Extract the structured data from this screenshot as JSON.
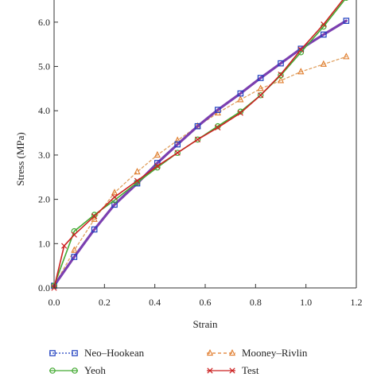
{
  "chart_data": {
    "type": "line",
    "xlabel": "Strain",
    "ylabel": "Stress (MPa)",
    "xlim": [
      0.0,
      1.2
    ],
    "ylim": [
      0.0,
      6.5
    ],
    "xticks": [
      "0.0",
      "0.2",
      "0.4",
      "0.6",
      "0.8",
      "1.0",
      "1.2"
    ],
    "xtick_values": [
      0.0,
      0.2,
      0.4,
      0.6,
      0.8,
      1.0,
      1.2
    ],
    "yticks": [
      "0.0",
      "1.0",
      "2.0",
      "3.0",
      "4.0",
      "5.0",
      "6.0"
    ],
    "ytick_values": [
      0.0,
      1.0,
      2.0,
      3.0,
      4.0,
      5.0,
      6.0
    ],
    "grid": false,
    "legend_position": "bottom",
    "series": [
      {
        "name": "Neo–Hookean",
        "color": "#1f3fbf",
        "line_color": "#7b3fb0",
        "marker": "square",
        "x": [
          0.0,
          0.08,
          0.16,
          0.24,
          0.33,
          0.41,
          0.49,
          0.57,
          0.65,
          0.74,
          0.82,
          0.9,
          0.98,
          1.07,
          1.16
        ],
        "y": [
          0.05,
          0.7,
          1.32,
          1.88,
          2.36,
          2.82,
          3.24,
          3.65,
          4.02,
          4.39,
          4.74,
          5.07,
          5.4,
          5.72,
          6.03
        ]
      },
      {
        "name": "Mooney–Rivlin",
        "color": "#e07b2a",
        "line_color": "#e0a060",
        "marker": "triangle",
        "x": [
          0.0,
          0.08,
          0.16,
          0.24,
          0.33,
          0.41,
          0.49,
          0.57,
          0.65,
          0.74,
          0.82,
          0.9,
          0.98,
          1.07,
          1.16
        ],
        "y": [
          0.05,
          0.85,
          1.55,
          2.15,
          2.62,
          3.0,
          3.33,
          3.65,
          3.95,
          4.25,
          4.5,
          4.68,
          4.88,
          5.05,
          5.22
        ]
      },
      {
        "name": "Yeoh",
        "color": "#44aa33",
        "line_color": "#44aa33",
        "marker": "circle",
        "x": [
          0.0,
          0.08,
          0.16,
          0.24,
          0.33,
          0.41,
          0.49,
          0.57,
          0.65,
          0.74,
          0.82,
          0.9,
          0.98,
          1.07,
          1.16
        ],
        "y": [
          0.05,
          1.28,
          1.65,
          1.98,
          2.38,
          2.72,
          3.05,
          3.35,
          3.65,
          3.98,
          4.35,
          4.8,
          5.32,
          5.9,
          6.55
        ]
      },
      {
        "name": "Test",
        "color": "#cc2222",
        "line_color": "#cc2222",
        "marker": "x",
        "x": [
          0.0,
          0.04,
          0.08,
          0.16,
          0.24,
          0.33,
          0.41,
          0.49,
          0.57,
          0.65,
          0.74,
          0.82,
          0.9,
          0.98,
          1.07,
          1.16
        ],
        "y": [
          0.0,
          0.95,
          1.2,
          1.62,
          2.05,
          2.42,
          2.75,
          3.05,
          3.35,
          3.62,
          3.95,
          4.35,
          4.82,
          5.38,
          5.95,
          6.6
        ]
      }
    ]
  }
}
